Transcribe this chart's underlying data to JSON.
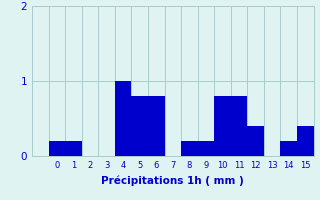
{
  "hours": [
    0,
    1,
    2,
    3,
    4,
    5,
    6,
    7,
    8,
    9,
    10,
    11,
    12,
    13,
    14,
    15
  ],
  "values": [
    0.2,
    0.2,
    0.0,
    0.0,
    1.0,
    0.8,
    0.8,
    0.0,
    0.2,
    0.2,
    0.8,
    0.8,
    0.4,
    0.0,
    0.2,
    0.4
  ],
  "bar_color": "#0000cc",
  "background_color": "#dff3f3",
  "grid_color": "#aacccc",
  "xlabel": "Précipitations 1h ( mm )",
  "tick_color": "#0000cc",
  "ylim": [
    0,
    2
  ],
  "yticks": [
    0,
    1,
    2
  ],
  "bar_width": 1.0,
  "title": ""
}
